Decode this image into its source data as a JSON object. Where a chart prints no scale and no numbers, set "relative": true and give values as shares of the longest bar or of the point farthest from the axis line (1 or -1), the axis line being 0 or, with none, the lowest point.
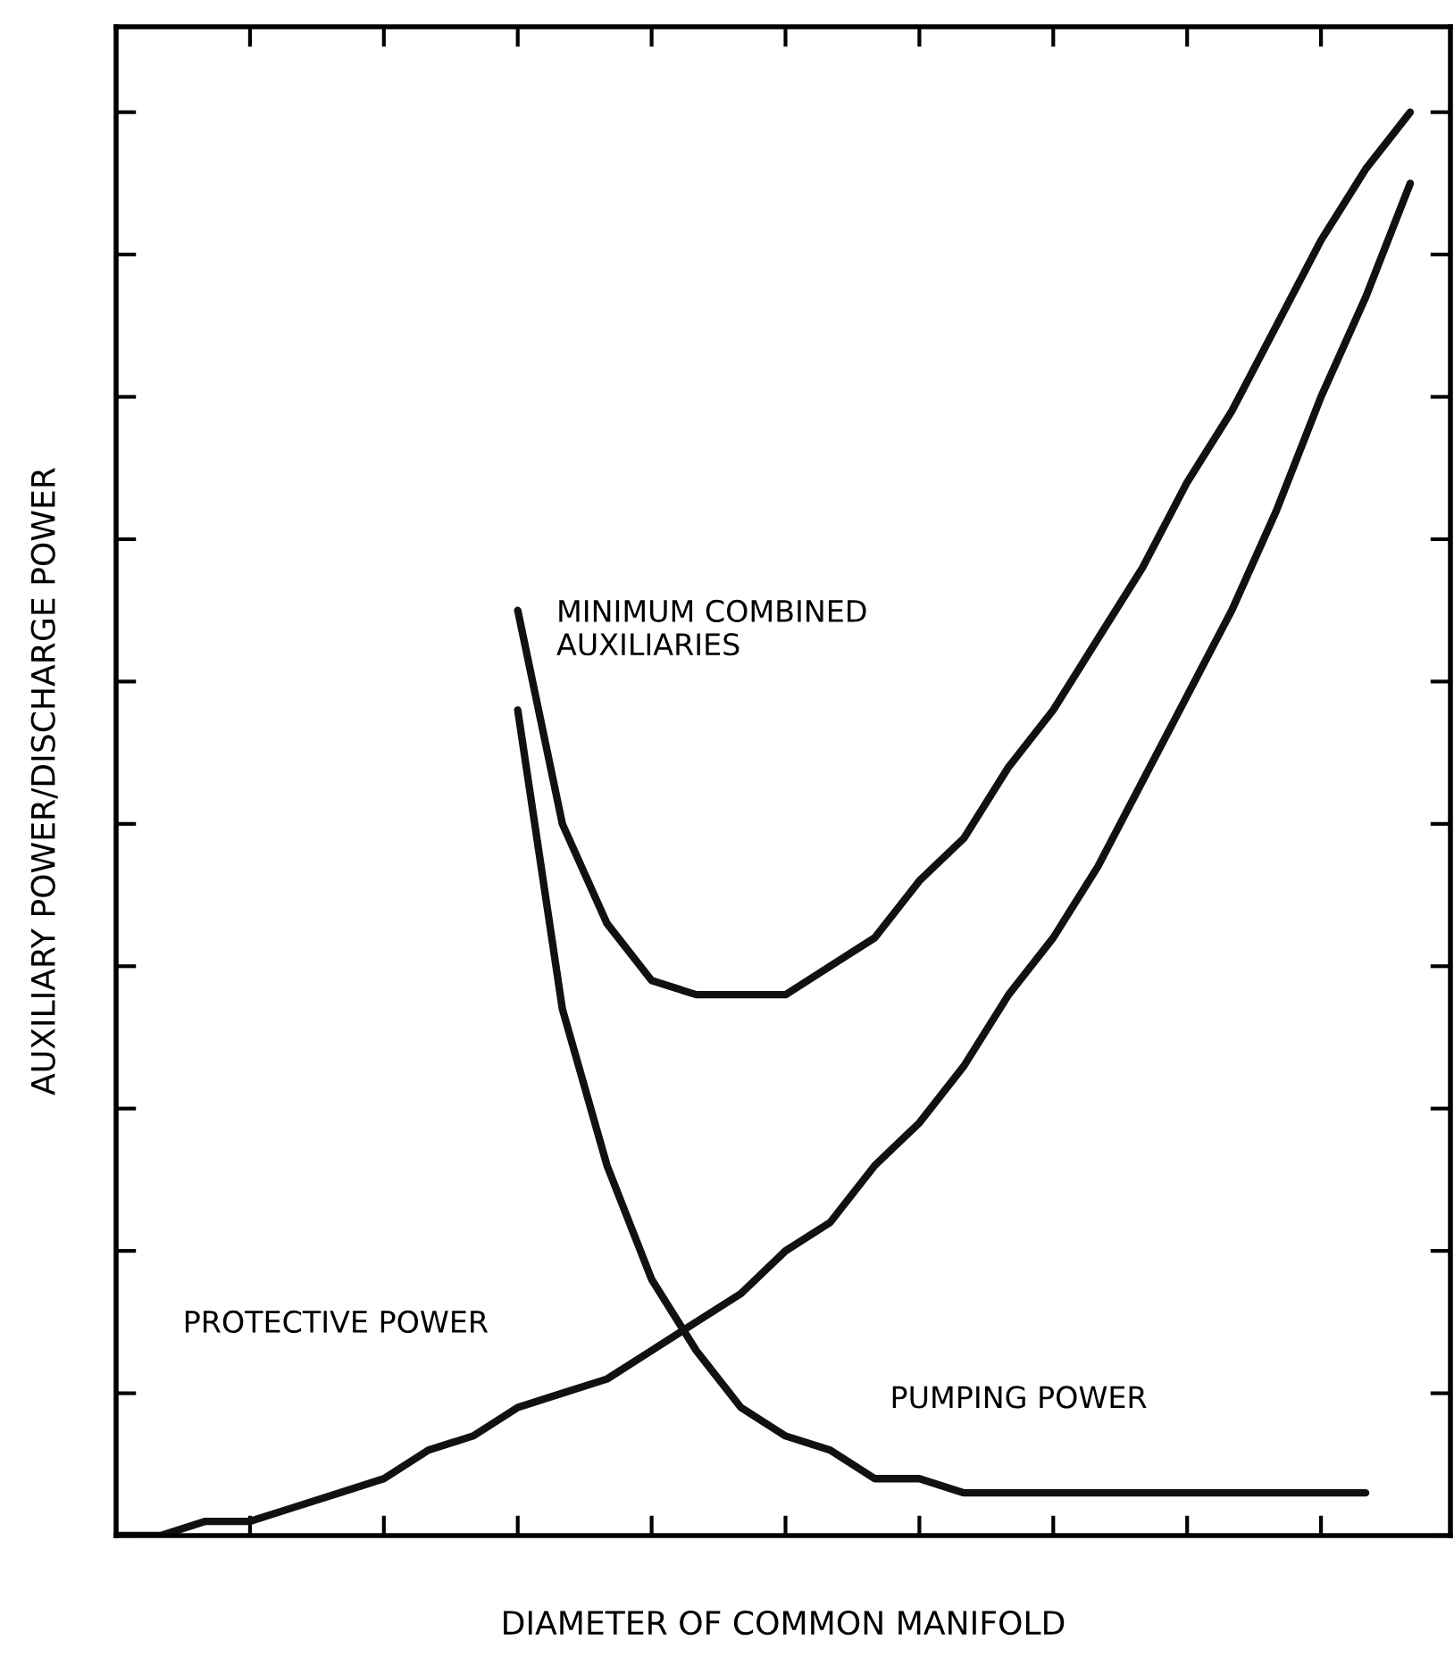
{
  "chart_data": {
    "type": "line",
    "relative": true,
    "tick_labels": false,
    "xlabel": "DIAMETER OF COMMON MANIFOLD",
    "ylabel": "AUXILIARY POWER/DISCHARGE POWER",
    "grid": false,
    "legend": false,
    "marker": "none",
    "line_style": "solid",
    "categories": [
      null,
      null,
      null,
      null,
      null,
      null,
      null,
      null,
      null,
      null,
      null,
      null,
      null,
      null,
      null,
      null,
      null,
      null,
      null,
      null,
      null,
      null,
      null,
      null,
      null,
      null,
      null,
      null,
      null,
      null,
      null
    ],
    "series": [
      {
        "name": "MINIMUM COMBINED\nAUXILIARIES",
        "color": "#111111",
        "values": [
          null,
          null,
          null,
          null,
          null,
          null,
          null,
          null,
          null,
          0.65,
          0.5,
          0.43,
          0.39,
          0.38,
          0.38,
          0.38,
          0.4,
          0.42,
          0.46,
          0.49,
          0.54,
          0.58,
          0.63,
          0.68,
          0.74,
          0.79,
          0.85,
          0.91,
          0.96,
          1.0,
          null
        ]
      },
      {
        "name": "PROTECTIVE POWER",
        "color": "#111111",
        "values": [
          0.0,
          0.0,
          0.01,
          0.01,
          0.02,
          0.03,
          0.04,
          0.06,
          0.07,
          0.09,
          0.1,
          0.11,
          0.13,
          0.15,
          0.17,
          0.2,
          0.22,
          0.26,
          0.29,
          0.33,
          0.38,
          0.42,
          0.47,
          0.53,
          0.59,
          0.65,
          0.72,
          0.8,
          0.87,
          0.95,
          null
        ]
      },
      {
        "name": "PUMPING POWER",
        "color": "#111111",
        "values": [
          null,
          null,
          null,
          null,
          null,
          null,
          null,
          null,
          null,
          0.58,
          0.37,
          0.26,
          0.18,
          0.13,
          0.09,
          0.07,
          0.06,
          0.04,
          0.04,
          0.03,
          0.03,
          0.03,
          0.03,
          0.03,
          0.03,
          0.03,
          0.03,
          0.03,
          0.03,
          null,
          null
        ]
      }
    ]
  }
}
